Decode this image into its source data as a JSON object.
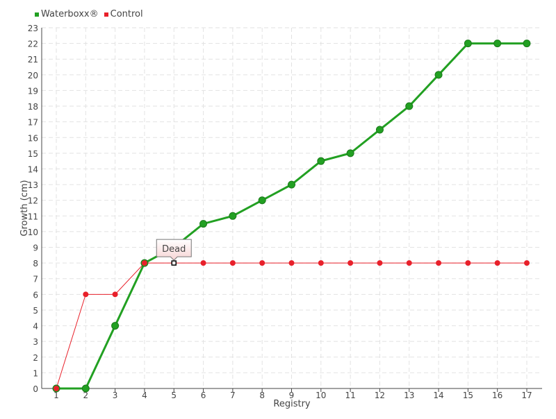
{
  "chart_data": {
    "type": "line",
    "xlabel": "Registry",
    "ylabel": "Growth (cm)",
    "x": [
      1,
      2,
      3,
      4,
      5,
      6,
      7,
      8,
      9,
      10,
      11,
      12,
      13,
      14,
      15,
      16,
      17
    ],
    "ylim": [
      0,
      23
    ],
    "grid": true,
    "legend_placement": "top-left",
    "series": [
      {
        "name": "Waterboxx®",
        "color": "#22a022",
        "values": [
          0,
          0,
          4,
          8,
          9,
          10.5,
          11,
          12,
          13,
          14.5,
          15,
          16.5,
          18,
          20,
          22,
          22,
          22
        ]
      },
      {
        "name": "Control",
        "color": "#e8202a",
        "values": [
          0,
          6,
          6,
          8,
          8,
          8,
          8,
          8,
          8,
          8,
          8,
          8,
          8,
          8,
          8,
          8,
          8
        ]
      }
    ],
    "annotations": [
      {
        "text": "Dead",
        "series": "Control",
        "x": 5,
        "y": 8
      }
    ]
  }
}
